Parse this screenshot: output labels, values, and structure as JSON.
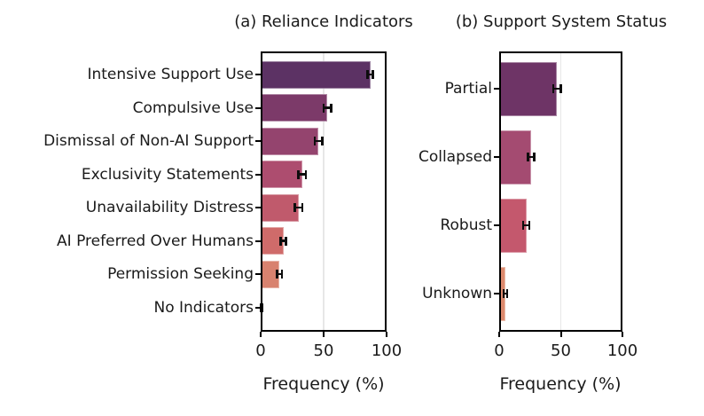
{
  "figure": {
    "background": "#ffffff",
    "text_color": "#1a1a1a"
  },
  "chart_data": [
    {
      "type": "bar",
      "orientation": "horizontal",
      "title": "(a) Reliance Indicators",
      "xlabel": "Frequency (%)",
      "xlim": [
        0,
        100
      ],
      "xticks": [
        0,
        50,
        100
      ],
      "xtick_labels": [
        "0",
        "50",
        "100"
      ],
      "grid": "vertical gridline at 50, light gray, drawn below bars",
      "legend": "none",
      "error_bars": true,
      "categories": [
        "Intensive Support Use",
        "Compulsive Use",
        "Dismissal of Non-AI Support",
        "Exclusivity Statements",
        "Unavailability Distress",
        "AI Preferred Over Humans",
        "Permission Seeking",
        "No Indicators"
      ],
      "values": [
        87,
        53,
        46,
        33,
        30,
        18,
        15,
        0.5
      ],
      "errors": [
        2,
        3,
        3,
        3,
        3,
        2,
        2,
        0.7
      ],
      "bar_colors": [
        "#5c3264",
        "#7c3a69",
        "#94446e",
        "#ad4d6f",
        "#c05a6c",
        "#cf6b6a",
        "#d8826f",
        "#e19a77"
      ],
      "error_color": "#0d0d0d"
    },
    {
      "type": "bar",
      "orientation": "horizontal",
      "title": "(b) Support System Status",
      "xlabel": "Frequency (%)",
      "xlim": [
        0,
        100
      ],
      "xticks": [
        0,
        50,
        100
      ],
      "xtick_labels": [
        "0",
        "50",
        "100"
      ],
      "grid": "vertical gridline at 50, light gray, drawn below bars",
      "legend": "none",
      "error_bars": true,
      "categories": [
        "Partial",
        "Collapsed",
        "Robust",
        "Unknown"
      ],
      "values": [
        47,
        26,
        22,
        5
      ],
      "errors": [
        3,
        2.5,
        2.5,
        1.5
      ],
      "bar_colors": [
        "#6e3466",
        "#a44b71",
        "#c4586d",
        "#dd8a6e"
      ],
      "error_color": "#0d0d0d"
    }
  ]
}
